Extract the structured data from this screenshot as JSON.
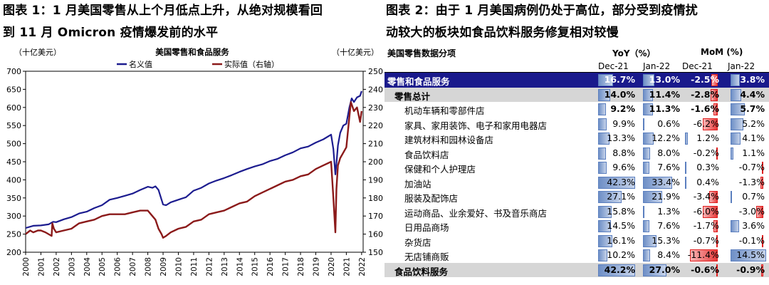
{
  "left_figure": {
    "title_line1": "图表 1：1 月美国零售从上个月低点上升，从绝对规模看回",
    "title_line2": "到 11 月 Omicron 疫情爆发前的水平"
  },
  "right_figure": {
    "title_line1": "图表 2：由于 1 月美国病例仍处于高位，部分受到疫情扰",
    "title_line2": "动较大的板块如食品饮料服务修复相对较慢"
  },
  "chart_data": {
    "type": "line",
    "title": "美国零售和食品服务",
    "left_unit": "（十亿美元）",
    "right_unit": "（十亿美元）",
    "left_ylim": [
      200,
      700
    ],
    "right_ylim": [
      150,
      250
    ],
    "left_ticks": [
      "700",
      "650",
      "600",
      "550",
      "500",
      "450",
      "400",
      "350",
      "300",
      "250",
      "200"
    ],
    "right_ticks": [
      "250",
      "240",
      "230",
      "220",
      "210",
      "200",
      "190",
      "180",
      "170",
      "160",
      "150"
    ],
    "x_ticks": [
      "2000",
      "2001",
      "2002",
      "2003",
      "2004",
      "2005",
      "2006",
      "2007",
      "2008",
      "2009",
      "2010",
      "2011",
      "2012",
      "2013",
      "2014",
      "2015",
      "2016",
      "2017",
      "2018",
      "2019",
      "2020",
      "2021",
      "2022"
    ],
    "x_range": [
      2000,
      2022.1
    ],
    "legend_position": "top-center",
    "series": [
      {
        "name": "名义值",
        "axis": "left",
        "color": "#1c1c8f",
        "x": [
          2000.0,
          2000.5,
          2001.0,
          2001.5,
          2001.8,
          2002.0,
          2002.5,
          2003.0,
          2003.5,
          2004.0,
          2004.5,
          2005.0,
          2005.5,
          2006.0,
          2006.5,
          2007.0,
          2007.5,
          2008.0,
          2008.3,
          2008.5,
          2008.7,
          2008.9,
          2009.0,
          2009.2,
          2009.5,
          2010.0,
          2010.5,
          2011.0,
          2011.5,
          2012.0,
          2012.5,
          2013.0,
          2013.5,
          2014.0,
          2014.5,
          2015.0,
          2015.5,
          2016.0,
          2016.5,
          2017.0,
          2017.5,
          2018.0,
          2018.5,
          2019.0,
          2019.5,
          2020.0,
          2020.15,
          2020.28,
          2020.35,
          2020.45,
          2020.6,
          2020.8,
          2021.0,
          2021.2,
          2021.35,
          2021.5,
          2021.7,
          2021.9,
          2022.0
        ],
        "values": [
          267,
          273,
          274,
          277,
          284,
          283,
          291,
          297,
          307,
          312,
          322,
          330,
          345,
          350,
          356,
          362,
          372,
          381,
          378,
          382,
          372,
          345,
          332,
          330,
          338,
          345,
          352,
          370,
          378,
          390,
          398,
          405,
          413,
          422,
          430,
          437,
          443,
          452,
          458,
          468,
          476,
          487,
          492,
          503,
          512,
          525,
          485,
          415,
          445,
          495,
          530,
          550,
          555,
          600,
          625,
          615,
          628,
          632,
          645
        ]
      },
      {
        "name": "实际值（右轴）",
        "axis": "right",
        "color": "#8b1a1a",
        "x": [
          2000.0,
          2000.3,
          2000.5,
          2000.8,
          2001.0,
          2001.3,
          2001.7,
          2001.75,
          2001.85,
          2002.0,
          2002.5,
          2003.0,
          2003.5,
          2004.0,
          2004.5,
          2005.0,
          2005.5,
          2006.0,
          2006.5,
          2007.0,
          2007.5,
          2008.0,
          2008.3,
          2008.5,
          2008.7,
          2008.9,
          2009.0,
          2009.2,
          2009.5,
          2010.0,
          2010.5,
          2011.0,
          2011.5,
          2012.0,
          2012.5,
          2013.0,
          2013.5,
          2014.0,
          2014.5,
          2015.0,
          2015.5,
          2016.0,
          2016.5,
          2017.0,
          2017.5,
          2018.0,
          2018.5,
          2019.0,
          2019.5,
          2020.0,
          2020.15,
          2020.28,
          2020.35,
          2020.45,
          2020.6,
          2020.8,
          2021.0,
          2021.2,
          2021.3,
          2021.5,
          2021.7,
          2021.9,
          2022.0
        ],
        "values": [
          160,
          162,
          161,
          162,
          162,
          161,
          159,
          166,
          163,
          161,
          162,
          163,
          166,
          167,
          168,
          170,
          171,
          171,
          171,
          172,
          173,
          173,
          170,
          168,
          163,
          160,
          158,
          159,
          161,
          163,
          164,
          167,
          168,
          171,
          172,
          173,
          175,
          177,
          178,
          181,
          183,
          185,
          187,
          189,
          190,
          192,
          193,
          196,
          198,
          200,
          180,
          161,
          185,
          198,
          202,
          205,
          208,
          225,
          233,
          228,
          230,
          222,
          228
        ]
      }
    ]
  },
  "table": {
    "title": "美国零售数据分项",
    "group_yoy": "YoY（%）",
    "group_mom": "MoM (%)",
    "col_headers": [
      "Dec-21",
      "Jan-22",
      "Dec-21",
      "Jan-22"
    ],
    "yoy_max": 42.3,
    "mom_max": 14.5,
    "rows": [
      {
        "label": "零售和食品服务",
        "style": "total",
        "indent": 0,
        "values": [
          16.7,
          13.0,
          -2.5,
          3.8
        ],
        "text": [
          "16.7%",
          "13.0%",
          "-2.5%",
          "3.8%"
        ]
      },
      {
        "label": "零售总计",
        "style": "subtotal",
        "indent": 1,
        "values": [
          14.0,
          11.4,
          -2.8,
          4.4
        ],
        "text": [
          "14.0%",
          "11.4%",
          "-2.8%",
          "4.4%"
        ]
      },
      {
        "label": "机动车辆和零部件店",
        "style": "boldvals",
        "indent": 2,
        "values": [
          9.2,
          11.3,
          -1.6,
          5.7
        ],
        "text": [
          "9.2%",
          "11.3%",
          "-1.6%",
          "5.7%"
        ]
      },
      {
        "label": "家具、家用装饰、电子和家用电器店",
        "style": "",
        "indent": 2,
        "values": [
          9.9,
          0.6,
          -6.2,
          5.2
        ],
        "text": [
          "9.9%",
          "0.6%",
          "-6.2%",
          "5.2%"
        ]
      },
      {
        "label": "建筑材料和园林设备店",
        "style": "",
        "indent": 2,
        "values": [
          13.3,
          12.2,
          1.2,
          4.1
        ],
        "text": [
          "13.3%",
          "12.2%",
          "1.2%",
          "4.1%"
        ]
      },
      {
        "label": "食品饮料店",
        "style": "",
        "indent": 2,
        "values": [
          8.8,
          8.0,
          -0.2,
          1.1
        ],
        "text": [
          "8.8%",
          "8.0%",
          "-0.2%",
          "1.1%"
        ]
      },
      {
        "label": "保健和个人护理店",
        "style": "",
        "indent": 2,
        "values": [
          9.6,
          7.6,
          0.3,
          -0.7
        ],
        "text": [
          "9.6%",
          "7.6%",
          "0.3%",
          "-0.7%"
        ]
      },
      {
        "label": "加油站",
        "style": "",
        "indent": 2,
        "values": [
          42.3,
          33.4,
          0.4,
          -1.3
        ],
        "text": [
          "42.3%",
          "33.4%",
          "0.4%",
          "-1.3%"
        ]
      },
      {
        "label": "服装及配饰店",
        "style": "",
        "indent": 2,
        "values": [
          27.1,
          21.9,
          -3.4,
          0.7
        ],
        "text": [
          "27.1%",
          "21.9%",
          "-3.4%",
          "0.7%"
        ]
      },
      {
        "label": "运动商品、业余爱好、书及音乐商店",
        "style": "",
        "indent": 2,
        "values": [
          15.8,
          1.3,
          -6.0,
          -3.0
        ],
        "text": [
          "15.8%",
          "1.3%",
          "-6.0%",
          "-3.0%"
        ]
      },
      {
        "label": "日用品商场",
        "style": "",
        "indent": 2,
        "values": [
          14.5,
          7.6,
          -1.7,
          3.6
        ],
        "text": [
          "14.5%",
          "7.6%",
          "-1.7%",
          "3.6%"
        ]
      },
      {
        "label": "杂货店",
        "style": "",
        "indent": 2,
        "values": [
          16.1,
          15.3,
          -0.7,
          -0.1
        ],
        "text": [
          "16.1%",
          "15.3%",
          "-0.7%",
          "-0.1%"
        ]
      },
      {
        "label": "无店铺商贩",
        "style": "",
        "indent": 2,
        "values": [
          10.2,
          8.4,
          -11.4,
          14.5
        ],
        "text": [
          "10.2%",
          "8.4%",
          "-11.4%",
          "14.5%"
        ]
      },
      {
        "label": "食品饮料服务",
        "style": "footer",
        "indent": 1,
        "values": [
          42.2,
          27.0,
          -0.6,
          -0.9
        ],
        "text": [
          "42.2%",
          "27.0%",
          "-0.6%",
          "-0.9%"
        ]
      }
    ]
  }
}
